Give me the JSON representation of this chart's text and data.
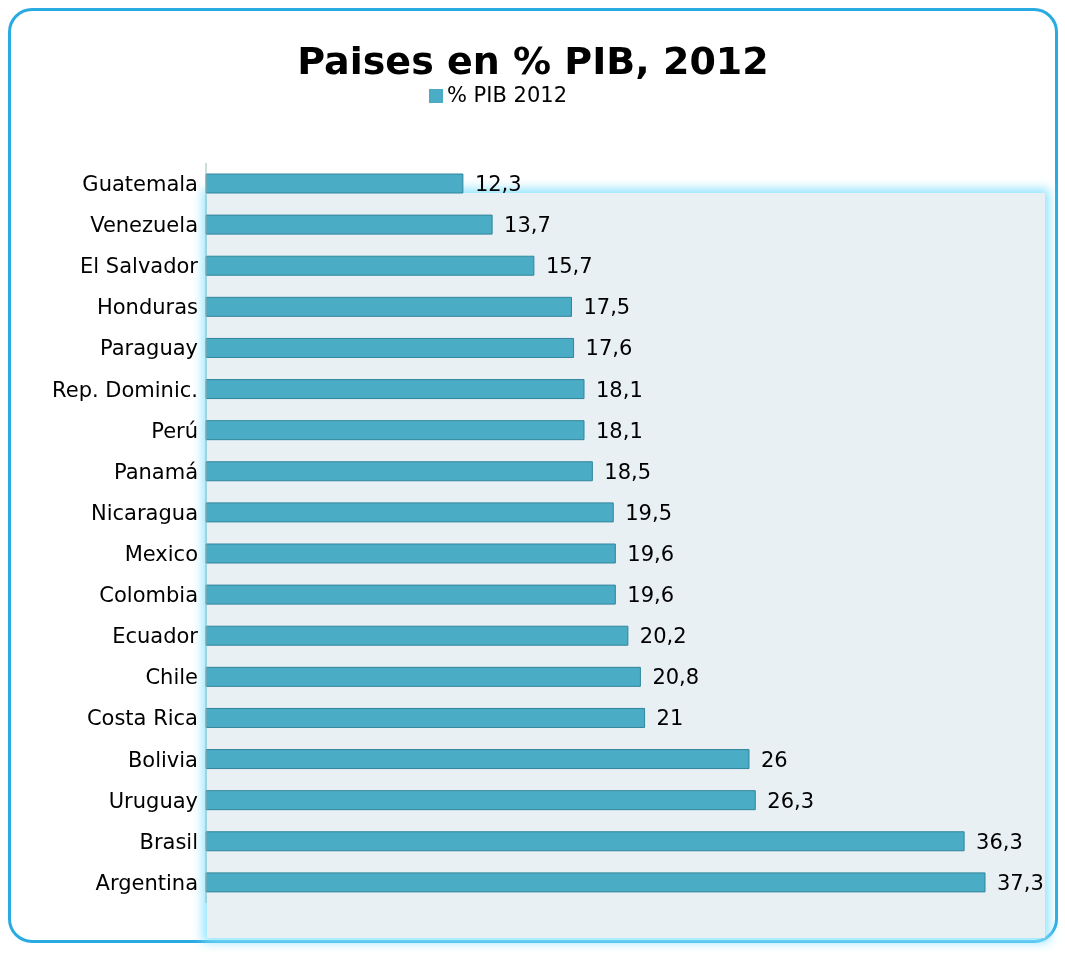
{
  "chart_data": {
    "type": "bar",
    "orientation": "horizontal",
    "title": "Paises en % PIB, 2012",
    "categories": [
      "Guatemala",
      "Venezuela",
      "El Salvador",
      "Honduras",
      "Paraguay",
      "Rep. Dominic.",
      "Perú",
      "Panamá",
      "Nicaragua",
      "Mexico",
      "Colombia",
      "Ecuador",
      "Chile",
      "Costa Rica",
      "Bolivia",
      "Uruguay",
      "Brasil",
      "Argentina"
    ],
    "series": [
      {
        "name": "% PIB 2012",
        "color": "#4bacc6",
        "values": [
          12.3,
          13.7,
          15.7,
          17.5,
          17.6,
          18.1,
          18.1,
          18.5,
          19.5,
          19.6,
          19.6,
          20.2,
          20.8,
          21,
          26,
          26.3,
          36.3,
          37.3
        ],
        "value_labels": [
          "12,3",
          "13,7",
          "15,7",
          "17,5",
          "17,6",
          "18,1",
          "18,1",
          "18,5",
          "19,5",
          "19,6",
          "19,6",
          "20,2",
          "20,8",
          "21",
          "26",
          "26,3",
          "36,3",
          "37,3"
        ]
      }
    ],
    "legend": "top",
    "grid": false
  }
}
